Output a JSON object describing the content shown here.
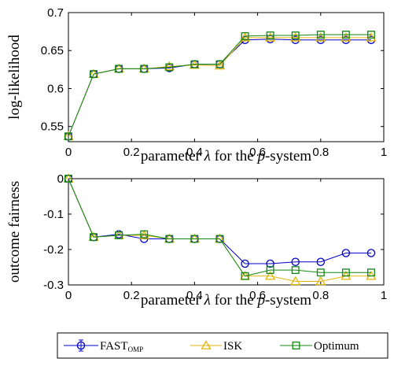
{
  "chart_data": [
    {
      "type": "line",
      "xlabel": "parameter λ for the p-system",
      "ylabel": "log-likelihood",
      "xlim": [
        0,
        1
      ],
      "ylim": [
        0.53,
        0.7
      ],
      "xticks": [
        "0",
        "0.2",
        "0.4",
        "0.6",
        "0.8",
        "1"
      ],
      "yticks": [
        "0.55",
        "0.6",
        "0.65",
        "0.7"
      ],
      "grid": false,
      "x": [
        0.0,
        0.08,
        0.16,
        0.24,
        0.32,
        0.4,
        0.48,
        0.56,
        0.64,
        0.72,
        0.8,
        0.88,
        0.96
      ],
      "series": [
        {
          "name": "FAST_OMP",
          "color": "#0000cc",
          "marker": "circle",
          "values": [
            0.537,
            0.619,
            0.626,
            0.626,
            0.627,
            0.632,
            0.632,
            0.664,
            0.665,
            0.664,
            0.664,
            0.664,
            0.664
          ]
        },
        {
          "name": "ISK",
          "color": "#e3b50b",
          "marker": "triangle",
          "values": [
            0.537,
            0.619,
            0.626,
            0.626,
            0.629,
            0.631,
            0.63,
            0.667,
            0.667,
            0.667,
            0.667,
            0.667,
            0.667
          ]
        },
        {
          "name": "Optimum",
          "color": "#118811",
          "marker": "square",
          "values": [
            0.537,
            0.619,
            0.626,
            0.626,
            0.628,
            0.632,
            0.632,
            0.669,
            0.67,
            0.67,
            0.671,
            0.671,
            0.671
          ]
        }
      ]
    },
    {
      "type": "line",
      "xlabel": "parameter λ for the p-system",
      "ylabel": "outcome fairness",
      "xlim": [
        0,
        1
      ],
      "ylim": [
        -0.3,
        0.0
      ],
      "xticks": [
        "0",
        "0.2",
        "0.4",
        "0.6",
        "0.8",
        "1"
      ],
      "yticks": [
        "-0.3",
        "-0.2",
        "-0.1",
        "0"
      ],
      "grid": false,
      "x": [
        0.0,
        0.08,
        0.16,
        0.24,
        0.32,
        0.4,
        0.48,
        0.56,
        0.64,
        0.72,
        0.8,
        0.88,
        0.96
      ],
      "series": [
        {
          "name": "FAST_OMP",
          "color": "#0000cc",
          "marker": "circle",
          "values": [
            0.0,
            -0.165,
            -0.157,
            -0.17,
            -0.17,
            -0.17,
            -0.17,
            -0.24,
            -0.24,
            -0.235,
            -0.235,
            -0.21,
            -0.21
          ]
        },
        {
          "name": "ISK",
          "color": "#e3b50b",
          "marker": "triangle",
          "values": [
            0.0,
            -0.165,
            -0.16,
            -0.16,
            -0.17,
            -0.17,
            -0.17,
            -0.275,
            -0.275,
            -0.29,
            -0.29,
            -0.275,
            -0.275
          ]
        },
        {
          "name": "Optimum",
          "color": "#118811",
          "marker": "square",
          "values": [
            0.0,
            -0.165,
            -0.16,
            -0.157,
            -0.17,
            -0.17,
            -0.17,
            -0.275,
            -0.258,
            -0.258,
            -0.265,
            -0.265,
            -0.265
          ]
        }
      ]
    }
  ],
  "legend": {
    "placement": "bottom",
    "entries": [
      {
        "label": "FAST",
        "subscript": "OMP",
        "smallcaps": true
      },
      {
        "label": "ISK",
        "smallcaps": true
      },
      {
        "label": "Optimum",
        "smallcaps": false
      }
    ]
  }
}
